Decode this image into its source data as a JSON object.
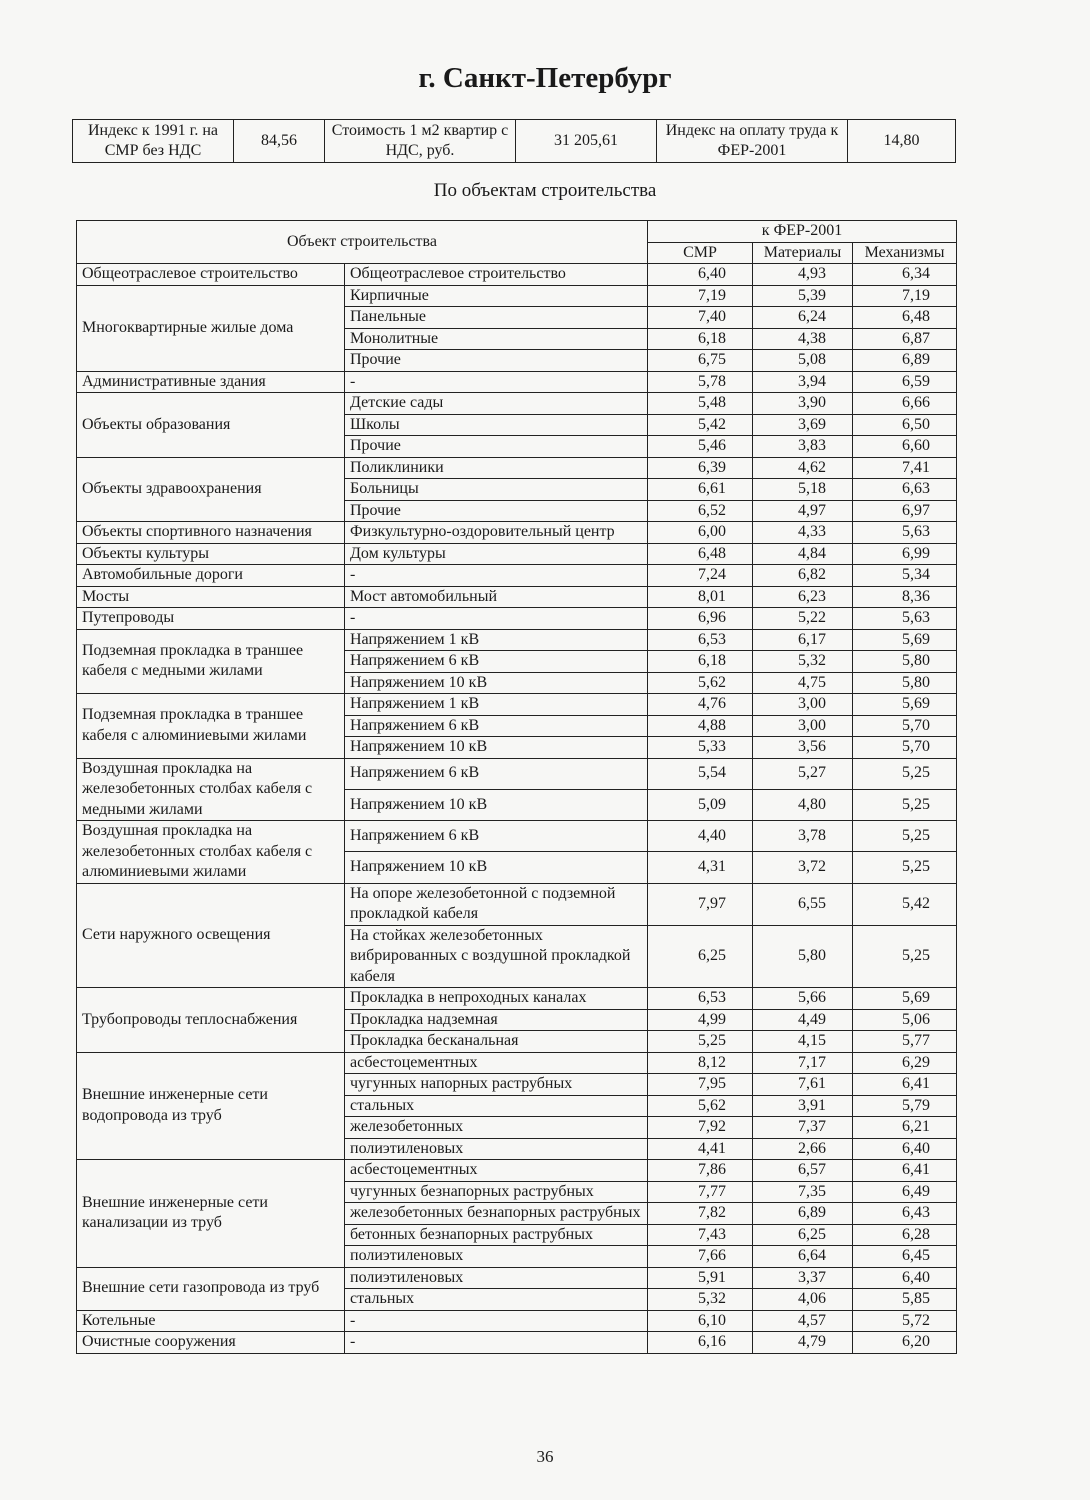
{
  "title": "г. Санкт-Петербург",
  "index_table": [
    "Индекс к 1991 г. на СМР без НДС",
    "84,56",
    "Стоимость 1 м2 квартир с НДС, руб.",
    "31 205,61",
    "Индекс на оплату труда к ФЕР-2001",
    "14,80"
  ],
  "subtitle": "По объектам строительства",
  "table": {
    "header": {
      "object": "Объект строительства",
      "group": "к ФЕР-2001",
      "columns": [
        "СМР",
        "Материалы",
        "Механизмы"
      ]
    },
    "groups": [
      {
        "name": "Общеотраслевое строительство",
        "rows": [
          [
            "Общеотраслевое строительство",
            "6,40",
            "4,93",
            "6,34"
          ]
        ]
      },
      {
        "name": "Многоквартирные жилые дома",
        "rows": [
          [
            "Кирпичные",
            "7,19",
            "5,39",
            "7,19"
          ],
          [
            "Панельные",
            "7,40",
            "6,24",
            "6,48"
          ],
          [
            "Монолитные",
            "6,18",
            "4,38",
            "6,87"
          ],
          [
            "Прочие",
            "6,75",
            "5,08",
            "6,89"
          ]
        ]
      },
      {
        "name": "Административные здания",
        "rows": [
          [
            "-",
            "5,78",
            "3,94",
            "6,59"
          ]
        ]
      },
      {
        "name": "Объекты образования",
        "rows": [
          [
            "Детские сады",
            "5,48",
            "3,90",
            "6,66"
          ],
          [
            "Школы",
            "5,42",
            "3,69",
            "6,50"
          ],
          [
            "Прочие",
            "5,46",
            "3,83",
            "6,60"
          ]
        ]
      },
      {
        "name": "Объекты здравоохранения",
        "rows": [
          [
            "Поликлиники",
            "6,39",
            "4,62",
            "7,41"
          ],
          [
            "Больницы",
            "6,61",
            "5,18",
            "6,63"
          ],
          [
            "Прочие",
            "6,52",
            "4,97",
            "6,97"
          ]
        ]
      },
      {
        "name": "Объекты спортивного назначения",
        "rows": [
          [
            "Физкультурно-оздоровительный центр",
            "6,00",
            "4,33",
            "5,63"
          ]
        ]
      },
      {
        "name": "Объекты культуры",
        "rows": [
          [
            "Дом культуры",
            "6,48",
            "4,84",
            "6,99"
          ]
        ]
      },
      {
        "name": "Автомобильные дороги",
        "rows": [
          [
            "-",
            "7,24",
            "6,82",
            "5,34"
          ]
        ]
      },
      {
        "name": "Мосты",
        "rows": [
          [
            "Мост автомобильный",
            "8,01",
            "6,23",
            "8,36"
          ]
        ]
      },
      {
        "name": "Путепроводы",
        "rows": [
          [
            "-",
            "6,96",
            "5,22",
            "5,63"
          ]
        ]
      },
      {
        "name": "Подземная прокладка в траншее кабеля с медными жилами",
        "rows": [
          [
            "Напряжением 1 кВ",
            "6,53",
            "6,17",
            "5,69"
          ],
          [
            "Напряжением 6 кВ",
            "6,18",
            "5,32",
            "5,80"
          ],
          [
            "Напряжением 10 кВ",
            "5,62",
            "4,75",
            "5,80"
          ]
        ]
      },
      {
        "name": "Подземная прокладка в траншее кабеля с алюминиевыми жилами",
        "rows": [
          [
            "Напряжением 1 кВ",
            "4,76",
            "3,00",
            "5,69"
          ],
          [
            "Напряжением 6 кВ",
            "4,88",
            "3,00",
            "5,70"
          ],
          [
            "Напряжением 10 кВ",
            "5,33",
            "3,56",
            "5,70"
          ]
        ]
      },
      {
        "name": "Воздушная прокладка на железобетонных столбах кабеля с медными жилами",
        "rows": [
          [
            "Напряжением 6 кВ",
            "5,54",
            "5,27",
            "5,25"
          ],
          [
            "Напряжением 10 кВ",
            "5,09",
            "4,80",
            "5,25"
          ]
        ]
      },
      {
        "name": "Воздушная прокладка на железобетонных столбах кабеля с алюминиевыми жилами",
        "rows": [
          [
            "Напряжением 6 кВ",
            "4,40",
            "3,78",
            "5,25"
          ],
          [
            "Напряжением 10 кВ",
            "4,31",
            "3,72",
            "5,25"
          ]
        ]
      },
      {
        "name": "Сети наружного освещения",
        "rows": [
          [
            "На опоре железобетонной с подземной прокладкой кабеля",
            "7,97",
            "6,55",
            "5,42"
          ],
          [
            "На стойках железобетонных вибрированных с воздушной прокладкой кабеля",
            "6,25",
            "5,80",
            "5,25"
          ]
        ]
      },
      {
        "name": "Трубопроводы теплоснабжения",
        "rows": [
          [
            "Прокладка в непроходных каналах",
            "6,53",
            "5,66",
            "5,69"
          ],
          [
            "Прокладка надземная",
            "4,99",
            "4,49",
            "5,06"
          ],
          [
            "Прокладка бесканальная",
            "5,25",
            "4,15",
            "5,77"
          ]
        ]
      },
      {
        "name": "Внешние инженерные сети водопровода из труб",
        "rows": [
          [
            "асбестоцементных",
            "8,12",
            "7,17",
            "6,29"
          ],
          [
            "чугунных напорных раструбных",
            "7,95",
            "7,61",
            "6,41"
          ],
          [
            "стальных",
            "5,62",
            "3,91",
            "5,79"
          ],
          [
            "железобетонных",
            "7,92",
            "7,37",
            "6,21"
          ],
          [
            "полиэтиленовых",
            "4,41",
            "2,66",
            "6,40"
          ]
        ]
      },
      {
        "name": "Внешние инженерные сети канализации из труб",
        "rows": [
          [
            "асбестоцементных",
            "7,86",
            "6,57",
            "6,41"
          ],
          [
            "чугунных безнапорных раструбных",
            "7,77",
            "7,35",
            "6,49"
          ],
          [
            "железобетонных безнапорных раструбных",
            "7,82",
            "6,89",
            "6,43"
          ],
          [
            "бетонных безнапорных раструбных",
            "7,43",
            "6,25",
            "6,28"
          ],
          [
            "полиэтиленовых",
            "7,66",
            "6,64",
            "6,45"
          ]
        ]
      },
      {
        "name": "Внешние сети газопровода из труб",
        "rows": [
          [
            "полиэтиленовых",
            "5,91",
            "3,37",
            "6,40"
          ],
          [
            "стальных",
            "5,32",
            "4,06",
            "5,85"
          ]
        ]
      },
      {
        "name": "Котельные",
        "rows": [
          [
            "-",
            "6,10",
            "4,57",
            "5,72"
          ]
        ]
      },
      {
        "name": "Очистные сооружения",
        "rows": [
          [
            "-",
            "6,16",
            "4,79",
            "6,20"
          ]
        ]
      }
    ]
  },
  "page_number": "36"
}
